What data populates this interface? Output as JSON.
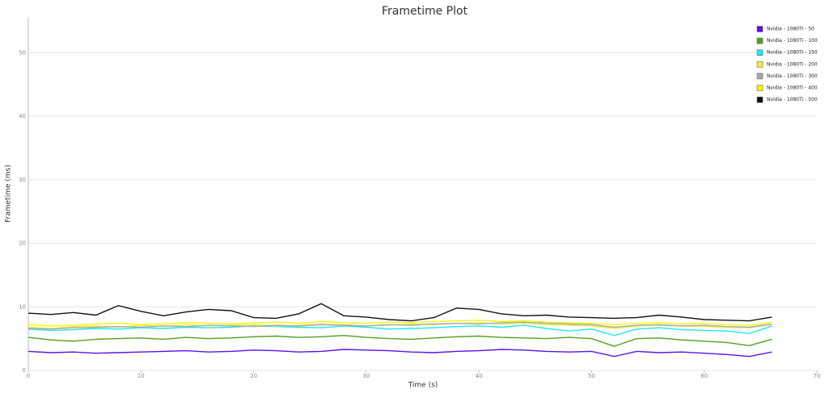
{
  "chart_data": {
    "type": "line",
    "title": "Frametime Plot",
    "x_label": "Time (s)",
    "y_label": "Frametime (ms)",
    "xlim": [
      0,
      70
    ],
    "xticks": [
      0,
      10,
      20,
      30,
      40,
      50,
      60,
      70
    ],
    "ylim": [
      0,
      55.5
    ],
    "yticks": [
      0,
      10,
      20,
      30,
      40,
      50
    ],
    "grid": true,
    "legend": "upper right",
    "x": [
      0,
      2,
      4,
      6,
      8,
      10,
      12,
      14,
      16,
      18,
      20,
      22,
      24,
      26,
      28,
      30,
      32,
      34,
      36,
      38,
      40,
      42,
      44,
      46,
      48,
      50,
      52,
      54,
      56,
      58,
      60,
      62,
      64,
      66
    ],
    "series": [
      {
        "name": "Nvidia - 1080Ti - 50",
        "color": "#5b12e8",
        "values": [
          3.0,
          2.8,
          2.9,
          2.7,
          2.8,
          2.9,
          3.0,
          3.1,
          2.9,
          3.0,
          3.2,
          3.1,
          2.9,
          3.0,
          3.3,
          3.2,
          3.1,
          2.9,
          2.8,
          3.0,
          3.1,
          3.3,
          3.2,
          3.0,
          2.9,
          3.0,
          2.2,
          3.0,
          2.8,
          2.9,
          2.7,
          2.5,
          2.2,
          2.9
        ]
      },
      {
        "name": "Nvidia - 1080Ti - 100",
        "color": "#4fa21a",
        "values": [
          5.2,
          4.8,
          4.6,
          4.9,
          5.0,
          5.1,
          4.9,
          5.2,
          5.0,
          5.1,
          5.3,
          5.4,
          5.2,
          5.3,
          5.5,
          5.2,
          5.0,
          4.9,
          5.1,
          5.3,
          5.4,
          5.2,
          5.1,
          5.0,
          5.2,
          5.0,
          3.8,
          5.0,
          5.1,
          4.8,
          4.6,
          4.4,
          3.9,
          4.9
        ]
      },
      {
        "name": "Nvidia - 1080Ti - 150",
        "color": "#1ee8ee",
        "values": [
          6.5,
          6.3,
          6.4,
          6.6,
          6.5,
          6.7,
          6.6,
          6.8,
          6.7,
          6.8,
          7.0,
          6.9,
          6.8,
          6.7,
          7.0,
          6.8,
          6.5,
          6.6,
          6.7,
          6.9,
          7.0,
          6.8,
          7.1,
          6.6,
          6.2,
          6.5,
          5.5,
          6.5,
          6.7,
          6.4,
          6.3,
          6.2,
          5.8,
          7.0
        ]
      },
      {
        "name": "Nvidia - 1080Ti - 200",
        "color": "#eef03a",
        "values": [
          6.8,
          6.6,
          6.9,
          7.0,
          6.8,
          7.1,
          6.9,
          7.2,
          7.0,
          7.1,
          7.2,
          7.0,
          7.1,
          7.3,
          7.2,
          7.0,
          7.1,
          7.3,
          7.2,
          7.4,
          7.5,
          7.3,
          7.4,
          7.2,
          7.1,
          7.0,
          6.6,
          7.0,
          7.1,
          7.0,
          6.9,
          6.8,
          6.7,
          7.2
        ]
      },
      {
        "name": "Nvidia - 1080Ti - 300",
        "color": "#a3aab3",
        "values": [
          6.6,
          6.5,
          6.7,
          6.8,
          6.9,
          6.8,
          7.0,
          6.9,
          7.1,
          7.0,
          6.9,
          7.1,
          7.0,
          7.2,
          7.1,
          7.0,
          7.2,
          7.1,
          7.3,
          7.4,
          7.3,
          7.5,
          7.6,
          7.4,
          7.3,
          7.2,
          6.8,
          7.1,
          7.2,
          7.0,
          7.1,
          6.9,
          6.8,
          7.3
        ]
      },
      {
        "name": "Nvidia - 1080Ti - 400",
        "color": "#f6f600",
        "values": [
          7.2,
          7.0,
          7.1,
          7.3,
          7.4,
          7.2,
          7.3,
          7.5,
          7.4,
          7.3,
          7.5,
          7.6,
          7.4,
          7.7,
          7.5,
          7.4,
          7.6,
          7.5,
          7.7,
          7.8,
          7.9,
          7.7,
          7.8,
          7.6,
          7.5,
          7.4,
          7.2,
          7.4,
          7.5,
          7.3,
          7.4,
          7.2,
          7.1,
          7.6
        ]
      },
      {
        "name": "Nvidia - 1080Ti - 500",
        "color": "#111111",
        "values": [
          9.0,
          8.8,
          9.1,
          8.7,
          10.2,
          9.3,
          8.6,
          9.2,
          9.6,
          9.4,
          8.3,
          8.2,
          8.9,
          10.5,
          8.6,
          8.4,
          8.0,
          7.8,
          8.3,
          9.8,
          9.6,
          8.9,
          8.6,
          8.7,
          8.4,
          8.3,
          8.2,
          8.3,
          8.7,
          8.4,
          8.0,
          7.9,
          7.8,
          8.4
        ]
      }
    ]
  }
}
